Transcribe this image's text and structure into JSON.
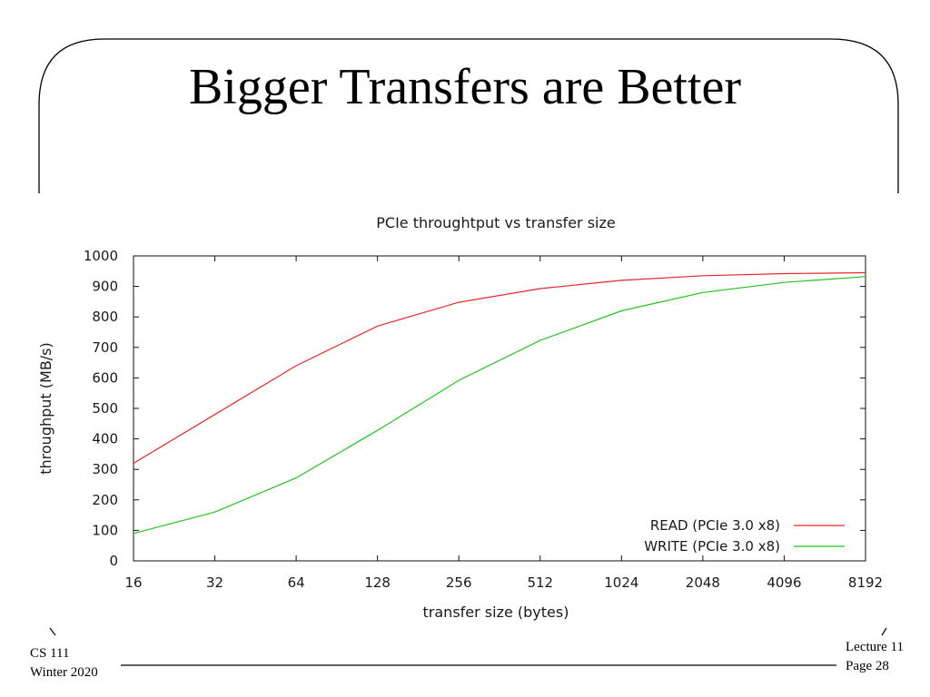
{
  "slide": {
    "title": "Bigger Transfers are Better",
    "footer_left": [
      "CS 111",
      "Winter 2020"
    ],
    "footer_right": [
      "Lecture 11",
      "Page 28"
    ]
  },
  "chart_data": {
    "type": "line",
    "title": "PCIe throughtput vs transfer size",
    "xlabel": "transfer size (bytes)",
    "ylabel": "throughput (MB/s)",
    "x": [
      16,
      32,
      64,
      128,
      256,
      512,
      1024,
      2048,
      4096,
      8192
    ],
    "x_scale": "log2",
    "ylim": [
      0,
      1000
    ],
    "yticks": [
      0,
      100,
      200,
      300,
      400,
      500,
      600,
      700,
      800,
      900,
      1000
    ],
    "grid": false,
    "legend_position": "bottom-right",
    "series": [
      {
        "name": "READ (PCIe 3.0 x8)",
        "color": "#e8282d",
        "values": [
          320,
          480,
          640,
          770,
          848,
          893,
          920,
          935,
          942,
          945
        ]
      },
      {
        "name": "WRITE (PCIe 3.0 x8)",
        "color": "#22c51c",
        "values": [
          90,
          160,
          272,
          428,
          592,
          723,
          820,
          880,
          913,
          932
        ]
      }
    ]
  }
}
